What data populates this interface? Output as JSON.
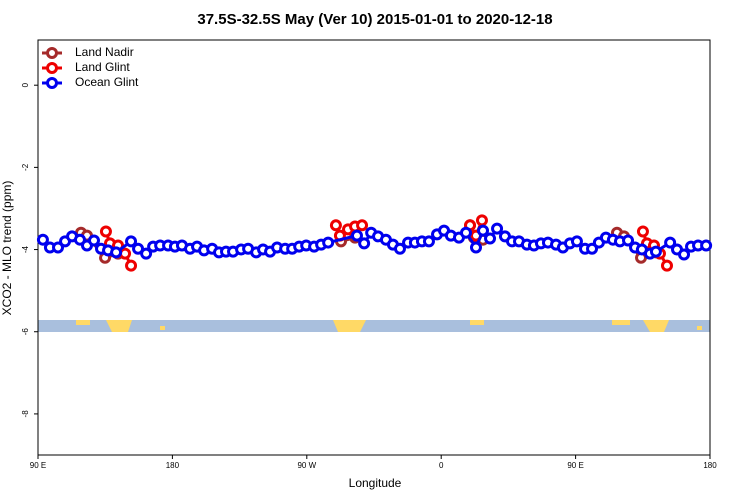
{
  "chart_data": {
    "type": "line",
    "title": "37.5S-32.5S May (Ver 10)   2015-01-01 to 2020-12-18",
    "xlabel": "Longitude",
    "ylabel": "XCO2 - MLO trend (ppm)",
    "xlim": [
      90,
      540
    ],
    "xticks": [
      {
        "value": 90,
        "label": "90 E"
      },
      {
        "value": 180,
        "label": "180"
      },
      {
        "value": 270,
        "label": "90 W"
      },
      {
        "value": 360,
        "label": "0"
      },
      {
        "value": 450,
        "label": "90 E"
      },
      {
        "value": 540,
        "label": "180"
      }
    ],
    "ylim": [
      -9,
      1.1
    ],
    "yticks": [
      0,
      -2,
      -4,
      -6,
      -8
    ],
    "legend": "upper left",
    "series": [
      {
        "name": "Land Nadir",
        "color": "#a52a2a",
        "x": [
          118.8,
          122.8,
          134.9,
          143.6,
          null,
          292.9,
          302.3,
          null,
          379.3,
          381.9,
          388.0,
          null,
          477.7,
          482.4,
          493.8,
          503.8
        ],
        "values": [
          -3.59,
          -3.66,
          -4.2,
          -4.1,
          null,
          -3.8,
          -3.71,
          null,
          -3.41,
          -3.71,
          -3.76,
          null,
          -3.59,
          -3.68,
          -4.2,
          -4.07
        ]
      },
      {
        "name": "Land Glint",
        "color": "#ee0000",
        "x": [
          135.5,
          138.2,
          143.6,
          148.3,
          152.3,
          null,
          289.5,
          292.2,
          297.6,
          302.3,
          307.0,
          null,
          379.3,
          383.3,
          387.3,
          null,
          495.1,
          497.8,
          502.5,
          506.5,
          511.2
        ],
        "values": [
          -3.56,
          -3.85,
          -3.9,
          -4.1,
          -4.39,
          null,
          -3.41,
          -3.66,
          -3.51,
          -3.44,
          -3.41,
          null,
          -3.41,
          -3.66,
          -3.29,
          null,
          -3.56,
          -3.85,
          -3.9,
          -4.1,
          -4.39
        ]
      },
      {
        "name": "Ocean Glint",
        "color": "#0000ee",
        "x": [
          93.3,
          98.0,
          103.4,
          108.1,
          112.8,
          118.1,
          122.8,
          127.5,
          132.2,
          136.9,
          142.3,
          152.3,
          157.0,
          162.4,
          167.1,
          171.8,
          177.1,
          181.7,
          186.4,
          191.8,
          196.5,
          201.2,
          206.6,
          211.2,
          215.9,
          220.6,
          226.0,
          230.7,
          236.1,
          240.7,
          245.4,
          250.1,
          255.5,
          260.2,
          264.9,
          269.6,
          274.9,
          279.6,
          284.3,
          303.6,
          308.4,
          313.1,
          317.7,
          323.0,
          327.7,
          332.4,
          337.8,
          342.4,
          347.1,
          351.8,
          357.2,
          361.9,
          366.5,
          371.9,
          376.6,
          383.3,
          388.0,
          392.7,
          397.4,
          402.7,
          407.4,
          412.1,
          417.4,
          422.1,
          426.8,
          431.5,
          436.9,
          441.5,
          446.2,
          450.9,
          456.3,
          461.0,
          465.6,
          470.3,
          475.0,
          479.7,
          485.1,
          489.8,
          494.4,
          499.8,
          503.8,
          513.3,
          517.9,
          522.6,
          527.3,
          532.0,
          537.4
        ],
        "values": [
          -3.76,
          -3.95,
          -3.95,
          -3.8,
          -3.68,
          -3.76,
          -3.9,
          -3.78,
          -3.98,
          -4.02,
          -4.07,
          -3.8,
          -3.98,
          -4.1,
          -3.93,
          -3.9,
          -3.9,
          -3.93,
          -3.9,
          -3.98,
          -3.93,
          -4.02,
          -3.98,
          -4.07,
          -4.05,
          -4.05,
          -4.0,
          -3.98,
          -4.07,
          -4.0,
          -4.05,
          -3.95,
          -3.98,
          -3.98,
          -3.93,
          -3.9,
          -3.93,
          -3.88,
          -3.83,
          -3.66,
          -3.85,
          -3.59,
          -3.68,
          -3.76,
          -3.88,
          -3.98,
          -3.83,
          -3.83,
          -3.8,
          -3.8,
          -3.63,
          -3.54,
          -3.66,
          -3.71,
          -3.59,
          -3.95,
          -3.54,
          -3.73,
          -3.49,
          -3.68,
          -3.8,
          -3.8,
          -3.88,
          -3.9,
          -3.85,
          -3.83,
          -3.88,
          -3.95,
          -3.85,
          -3.8,
          -3.98,
          -3.98,
          -3.83,
          -3.71,
          -3.76,
          -3.8,
          -3.78,
          -3.95,
          -4.0,
          -4.1,
          -4.05,
          -3.83,
          -4.0,
          -4.12,
          -3.93,
          -3.9,
          -3.9
        ]
      }
    ]
  }
}
